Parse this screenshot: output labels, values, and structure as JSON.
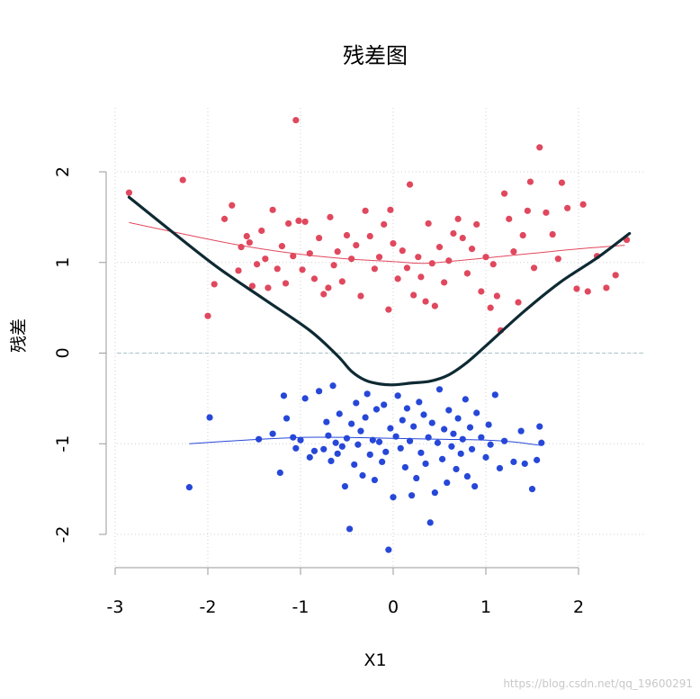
{
  "chart_data": {
    "type": "scatter",
    "title": "残差图",
    "xlabel": "X1",
    "ylabel": "残差",
    "xlim": [
      -3.0,
      2.8
    ],
    "ylim": [
      -2.35,
      2.7
    ],
    "x_ticks": [
      -3,
      -2,
      -1,
      0,
      1,
      2
    ],
    "y_ticks": [
      -2,
      -1,
      0,
      1,
      2
    ],
    "grid": true,
    "watermark": "https://blog.csdn.net/qq_19600291",
    "colors": {
      "upper": "#e0485e",
      "lower": "#2647d8",
      "main_curve": "#0e2a33",
      "zero_line": "#a9c4c9",
      "grid": "#cfcfcf",
      "axis": "#9a9a9a"
    },
    "series": [
      {
        "group": "upper",
        "points": [
          [
            -2.85,
            1.77
          ],
          [
            -2.27,
            1.91
          ],
          [
            -2.0,
            0.41
          ],
          [
            -1.93,
            0.76
          ],
          [
            -1.82,
            1.48
          ],
          [
            -1.74,
            1.63
          ],
          [
            -1.67,
            0.91
          ],
          [
            -1.64,
            1.17
          ],
          [
            -1.58,
            1.29
          ],
          [
            -1.55,
            1.22
          ],
          [
            -1.52,
            0.74
          ],
          [
            -1.47,
            0.98
          ],
          [
            -1.42,
            1.35
          ],
          [
            -1.38,
            1.04
          ],
          [
            -1.35,
            0.72
          ],
          [
            -1.3,
            1.58
          ],
          [
            -1.25,
            0.93
          ],
          [
            -1.2,
            1.18
          ],
          [
            -1.16,
            0.77
          ],
          [
            -1.13,
            1.43
          ],
          [
            -1.08,
            1.07
          ],
          [
            -1.05,
            2.57
          ],
          [
            -1.02,
            1.46
          ],
          [
            -0.98,
            0.92
          ],
          [
            -0.95,
            1.45
          ],
          [
            -0.9,
            1.1
          ],
          [
            -0.85,
            0.82
          ],
          [
            -0.8,
            1.27
          ],
          [
            -0.75,
            0.65
          ],
          [
            -0.7,
            0.72
          ],
          [
            -0.68,
            1.5
          ],
          [
            -0.64,
            0.97
          ],
          [
            -0.6,
            1.12
          ],
          [
            -0.55,
            0.79
          ],
          [
            -0.5,
            1.3
          ],
          [
            -0.45,
            1.04
          ],
          [
            -0.4,
            1.19
          ],
          [
            -0.35,
            0.63
          ],
          [
            -0.3,
            1.57
          ],
          [
            -0.25,
            1.29
          ],
          [
            -0.2,
            0.93
          ],
          [
            -0.15,
            1.06
          ],
          [
            -0.1,
            1.42
          ],
          [
            -0.05,
            0.48
          ],
          [
            -0.03,
            1.58
          ],
          [
            0.0,
            1.21
          ],
          [
            0.05,
            0.82
          ],
          [
            0.1,
            1.13
          ],
          [
            0.15,
            0.94
          ],
          [
            0.18,
            1.86
          ],
          [
            0.22,
            0.64
          ],
          [
            0.27,
            1.06
          ],
          [
            0.3,
            0.84
          ],
          [
            0.35,
            0.57
          ],
          [
            0.38,
            1.43
          ],
          [
            0.42,
            0.99
          ],
          [
            0.45,
            0.52
          ],
          [
            0.5,
            1.17
          ],
          [
            0.55,
            0.78
          ],
          [
            0.6,
            1.02
          ],
          [
            0.65,
            1.32
          ],
          [
            0.7,
            1.48
          ],
          [
            0.75,
            1.27
          ],
          [
            0.8,
            0.88
          ],
          [
            0.85,
            1.15
          ],
          [
            0.9,
            1.42
          ],
          [
            0.95,
            0.68
          ],
          [
            1.0,
            1.06
          ],
          [
            1.05,
            0.5
          ],
          [
            1.08,
            0.98
          ],
          [
            1.12,
            0.63
          ],
          [
            1.16,
            0.25
          ],
          [
            1.2,
            1.76
          ],
          [
            1.25,
            1.48
          ],
          [
            1.3,
            1.12
          ],
          [
            1.35,
            0.56
          ],
          [
            1.4,
            1.3
          ],
          [
            1.45,
            1.57
          ],
          [
            1.48,
            1.89
          ],
          [
            1.52,
            0.94
          ],
          [
            1.58,
            2.27
          ],
          [
            1.65,
            1.55
          ],
          [
            1.72,
            1.31
          ],
          [
            1.78,
            1.04
          ],
          [
            1.82,
            1.88
          ],
          [
            1.88,
            1.6
          ],
          [
            1.98,
            0.71
          ],
          [
            2.05,
            1.64
          ],
          [
            2.1,
            0.68
          ],
          [
            2.2,
            1.07
          ],
          [
            2.3,
            0.72
          ],
          [
            2.4,
            0.86
          ],
          [
            2.52,
            1.25
          ]
        ],
        "trend": [
          [
            -2.85,
            1.44
          ],
          [
            -2.2,
            1.3
          ],
          [
            -1.6,
            1.18
          ],
          [
            -1.0,
            1.09
          ],
          [
            -0.5,
            1.04
          ],
          [
            0.0,
            1.01
          ],
          [
            0.3,
            0.99
          ],
          [
            0.6,
            1.01
          ],
          [
            1.0,
            1.05
          ],
          [
            1.5,
            1.1
          ],
          [
            2.0,
            1.15
          ],
          [
            2.5,
            1.19
          ]
        ]
      },
      {
        "group": "lower",
        "points": [
          [
            -2.2,
            -1.48
          ],
          [
            -1.98,
            -0.71
          ],
          [
            -1.45,
            -0.95
          ],
          [
            -1.3,
            -0.89
          ],
          [
            -1.22,
            -1.32
          ],
          [
            -1.18,
            -0.47
          ],
          [
            -1.15,
            -0.72
          ],
          [
            -1.08,
            -0.93
          ],
          [
            -1.05,
            -1.05
          ],
          [
            -1.0,
            -0.96
          ],
          [
            -0.95,
            -0.5
          ],
          [
            -0.9,
            -1.15
          ],
          [
            -0.85,
            -1.08
          ],
          [
            -0.8,
            -0.42
          ],
          [
            -0.75,
            -1.06
          ],
          [
            -0.72,
            -0.76
          ],
          [
            -0.7,
            -0.91
          ],
          [
            -0.67,
            -1.19
          ],
          [
            -0.65,
            -0.36
          ],
          [
            -0.62,
            -0.99
          ],
          [
            -0.6,
            -1.11
          ],
          [
            -0.58,
            -0.67
          ],
          [
            -0.55,
            -1.03
          ],
          [
            -0.52,
            -1.47
          ],
          [
            -0.5,
            -0.94
          ],
          [
            -0.47,
            -1.94
          ],
          [
            -0.45,
            -0.78
          ],
          [
            -0.42,
            -1.23
          ],
          [
            -0.4,
            -0.55
          ],
          [
            -0.38,
            -1.01
          ],
          [
            -0.35,
            -0.86
          ],
          [
            -0.33,
            -1.35
          ],
          [
            -0.3,
            -0.71
          ],
          [
            -0.28,
            -0.45
          ],
          [
            -0.25,
            -1.12
          ],
          [
            -0.22,
            -0.96
          ],
          [
            -0.2,
            -1.4
          ],
          [
            -0.18,
            -0.62
          ],
          [
            -0.15,
            -0.98
          ],
          [
            -0.12,
            -1.2
          ],
          [
            -0.1,
            -0.57
          ],
          [
            -0.08,
            -1.09
          ],
          [
            -0.05,
            -2.17
          ],
          [
            -0.03,
            -0.83
          ],
          [
            0.0,
            -1.59
          ],
          [
            0.03,
            -0.92
          ],
          [
            0.05,
            -0.47
          ],
          [
            0.08,
            -1.05
          ],
          [
            0.1,
            -0.74
          ],
          [
            0.13,
            -1.26
          ],
          [
            0.15,
            -0.61
          ],
          [
            0.18,
            -0.97
          ],
          [
            0.2,
            -1.57
          ],
          [
            0.22,
            -0.81
          ],
          [
            0.25,
            -1.38
          ],
          [
            0.28,
            -0.54
          ],
          [
            0.3,
            -1.1
          ],
          [
            0.33,
            -0.68
          ],
          [
            0.35,
            -1.22
          ],
          [
            0.38,
            -0.93
          ],
          [
            0.4,
            -1.87
          ],
          [
            0.42,
            -0.77
          ],
          [
            0.45,
            -1.54
          ],
          [
            0.48,
            -0.99
          ],
          [
            0.5,
            -0.4
          ],
          [
            0.53,
            -1.17
          ],
          [
            0.55,
            -0.84
          ],
          [
            0.58,
            -1.43
          ],
          [
            0.6,
            -0.63
          ],
          [
            0.63,
            -1.03
          ],
          [
            0.65,
            -0.89
          ],
          [
            0.68,
            -1.28
          ],
          [
            0.7,
            -0.72
          ],
          [
            0.73,
            -1.11
          ],
          [
            0.75,
            -0.95
          ],
          [
            0.78,
            -0.51
          ],
          [
            0.8,
            -1.36
          ],
          [
            0.83,
            -0.82
          ],
          [
            0.85,
            -1.06
          ],
          [
            0.88,
            -1.47
          ],
          [
            0.9,
            -0.66
          ],
          [
            0.95,
            -0.93
          ],
          [
            1.0,
            -1.15
          ],
          [
            1.03,
            -0.79
          ],
          [
            1.05,
            -1.01
          ],
          [
            1.1,
            -0.46
          ],
          [
            1.15,
            -1.27
          ],
          [
            1.2,
            -0.97
          ],
          [
            1.3,
            -1.2
          ],
          [
            1.38,
            -0.86
          ],
          [
            1.42,
            -1.22
          ],
          [
            1.5,
            -1.5
          ],
          [
            1.55,
            -1.18
          ],
          [
            1.58,
            -0.81
          ],
          [
            1.6,
            -0.99
          ]
        ],
        "trend": [
          [
            -2.2,
            -1.0
          ],
          [
            -1.6,
            -0.96
          ],
          [
            -1.0,
            -0.93
          ],
          [
            -0.5,
            -0.93
          ],
          [
            0.0,
            -0.94
          ],
          [
            0.5,
            -0.95
          ],
          [
            1.0,
            -0.96
          ],
          [
            1.3,
            -0.98
          ],
          [
            1.6,
            -1.02
          ]
        ]
      }
    ],
    "main_curve": [
      [
        -2.85,
        1.72
      ],
      [
        -2.4,
        1.35
      ],
      [
        -1.9,
        0.95
      ],
      [
        -1.4,
        0.6
      ],
      [
        -0.9,
        0.25
      ],
      [
        -0.6,
        -0.03
      ],
      [
        -0.45,
        -0.2
      ],
      [
        -0.3,
        -0.3
      ],
      [
        -0.15,
        -0.34
      ],
      [
        0.0,
        -0.35
      ],
      [
        0.2,
        -0.33
      ],
      [
        0.4,
        -0.31
      ],
      [
        0.6,
        -0.24
      ],
      [
        0.8,
        -0.1
      ],
      [
        1.0,
        0.08
      ],
      [
        1.4,
        0.45
      ],
      [
        1.8,
        0.78
      ],
      [
        2.2,
        1.05
      ],
      [
        2.55,
        1.32
      ]
    ]
  }
}
